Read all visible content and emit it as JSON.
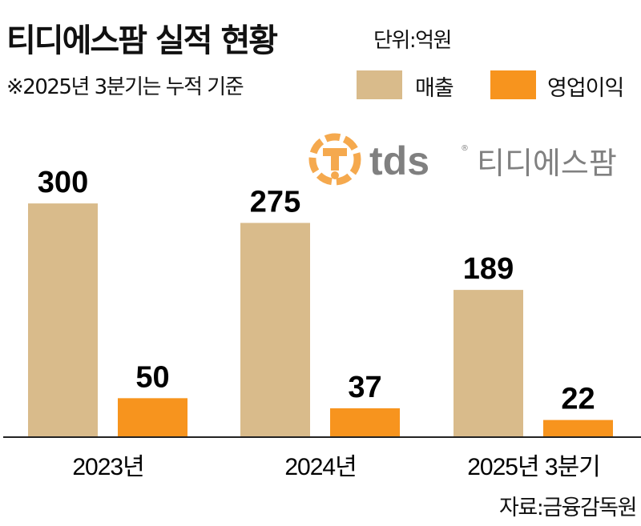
{
  "title": "티디에스팜 실적 현황",
  "unit": "단위:억원",
  "note": "※2025년 3분기는 누적 기준",
  "source": "자료:금융감독원",
  "logo": {
    "mark": "T",
    "text": "tds",
    "name": "티디에스팜",
    "color": "#f5a94e"
  },
  "chart_data": {
    "type": "bar",
    "title": "티디에스팜 실적 현황",
    "xlabel": "",
    "ylabel": "",
    "categories": [
      "2023년",
      "2024년",
      "2025년 3분기"
    ],
    "series": [
      {
        "name": "매출",
        "color": "#d9bb8b",
        "values": [
          300,
          275,
          189
        ]
      },
      {
        "name": "영업이익",
        "color": "#f7941e",
        "values": [
          50,
          37,
          22
        ]
      }
    ],
    "grid": false,
    "legend": "top-right"
  }
}
